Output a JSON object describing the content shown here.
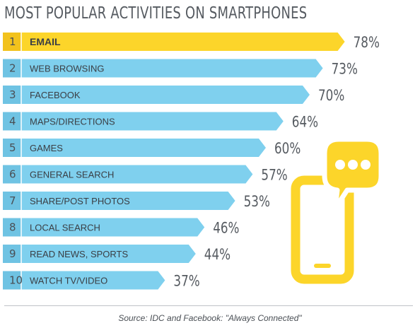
{
  "header": {
    "title": "MOST POPULAR ACTIVITIES ON SMARTPHONES"
  },
  "chart_data": {
    "type": "bar",
    "orientation": "horizontal",
    "title": "MOST POPULAR ACTIVITIES ON SMARTPHONES",
    "ranks": [
      "1",
      "2",
      "3",
      "4",
      "5",
      "6",
      "7",
      "8",
      "9",
      "10"
    ],
    "categories": [
      "EMAIL",
      "WEB BROWSING",
      "FACEBOOK",
      "MAPS/DIRECTIONS",
      "GAMES",
      "GENERAL SEARCH",
      "SHARE/POST PHOTOS",
      "LOCAL SEARCH",
      "READ NEWS, SPORTS",
      "WATCH TV/VIDEO"
    ],
    "values": [
      78,
      73,
      70,
      64,
      60,
      57,
      53,
      46,
      44,
      37
    ],
    "value_labels": [
      "78%",
      "73%",
      "70%",
      "64%",
      "60%",
      "57%",
      "53%",
      "46%",
      "44%",
      "37%"
    ],
    "unit": "%",
    "xlim": [
      0,
      100
    ],
    "highlight_index": 0,
    "colors": {
      "highlight": "#fcd52a",
      "bar": "#7fd0ee",
      "rank_highlight": "#f2c21d",
      "rank": "#6fc3e3"
    },
    "grid": false,
    "legend": "none"
  },
  "icon": {
    "name": "smartphone-chat-icon",
    "color": "#fcd52a"
  },
  "footer": {
    "source": "Source: IDC and Facebook: \"Always Connected\""
  }
}
